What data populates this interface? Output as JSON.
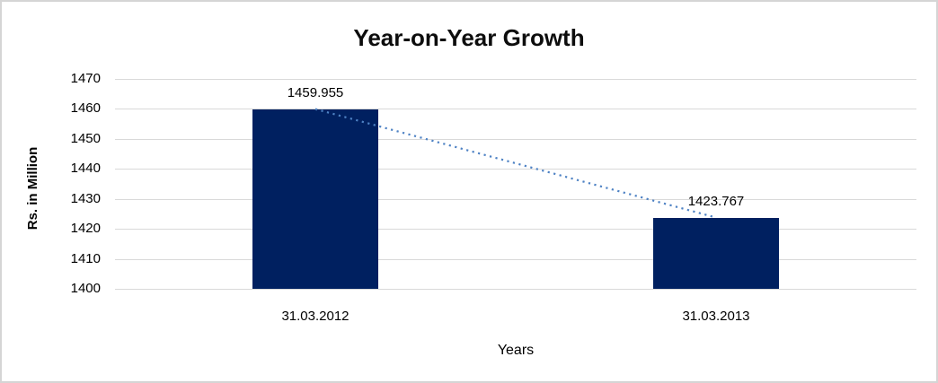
{
  "chart_data": {
    "type": "bar",
    "title": "Year-on-Year Growth",
    "categories": [
      "31.03.2012",
      "31.03.2013"
    ],
    "values": [
      1459.955,
      1423.767
    ],
    "data_labels": [
      "1459.955",
      "1423.767"
    ],
    "xlabel": "Years",
    "ylabel": "Rs. in Million",
    "ylim": [
      1400,
      1470
    ],
    "yticks": [
      1400,
      1410,
      1420,
      1430,
      1440,
      1450,
      1460,
      1470
    ],
    "grid": "horizontal",
    "legend": "none",
    "trendline": {
      "style": "dotted",
      "from": "bar-1-top-center",
      "to": "bar-2-top-center"
    },
    "colors": {
      "bar": "#002060",
      "trendline": "#4e82c4",
      "gridline": "#d9d9d9",
      "text": "#000000",
      "title": "#0d0d0d",
      "frame_border": "#d5d5d5",
      "background": "#ffffff"
    }
  }
}
